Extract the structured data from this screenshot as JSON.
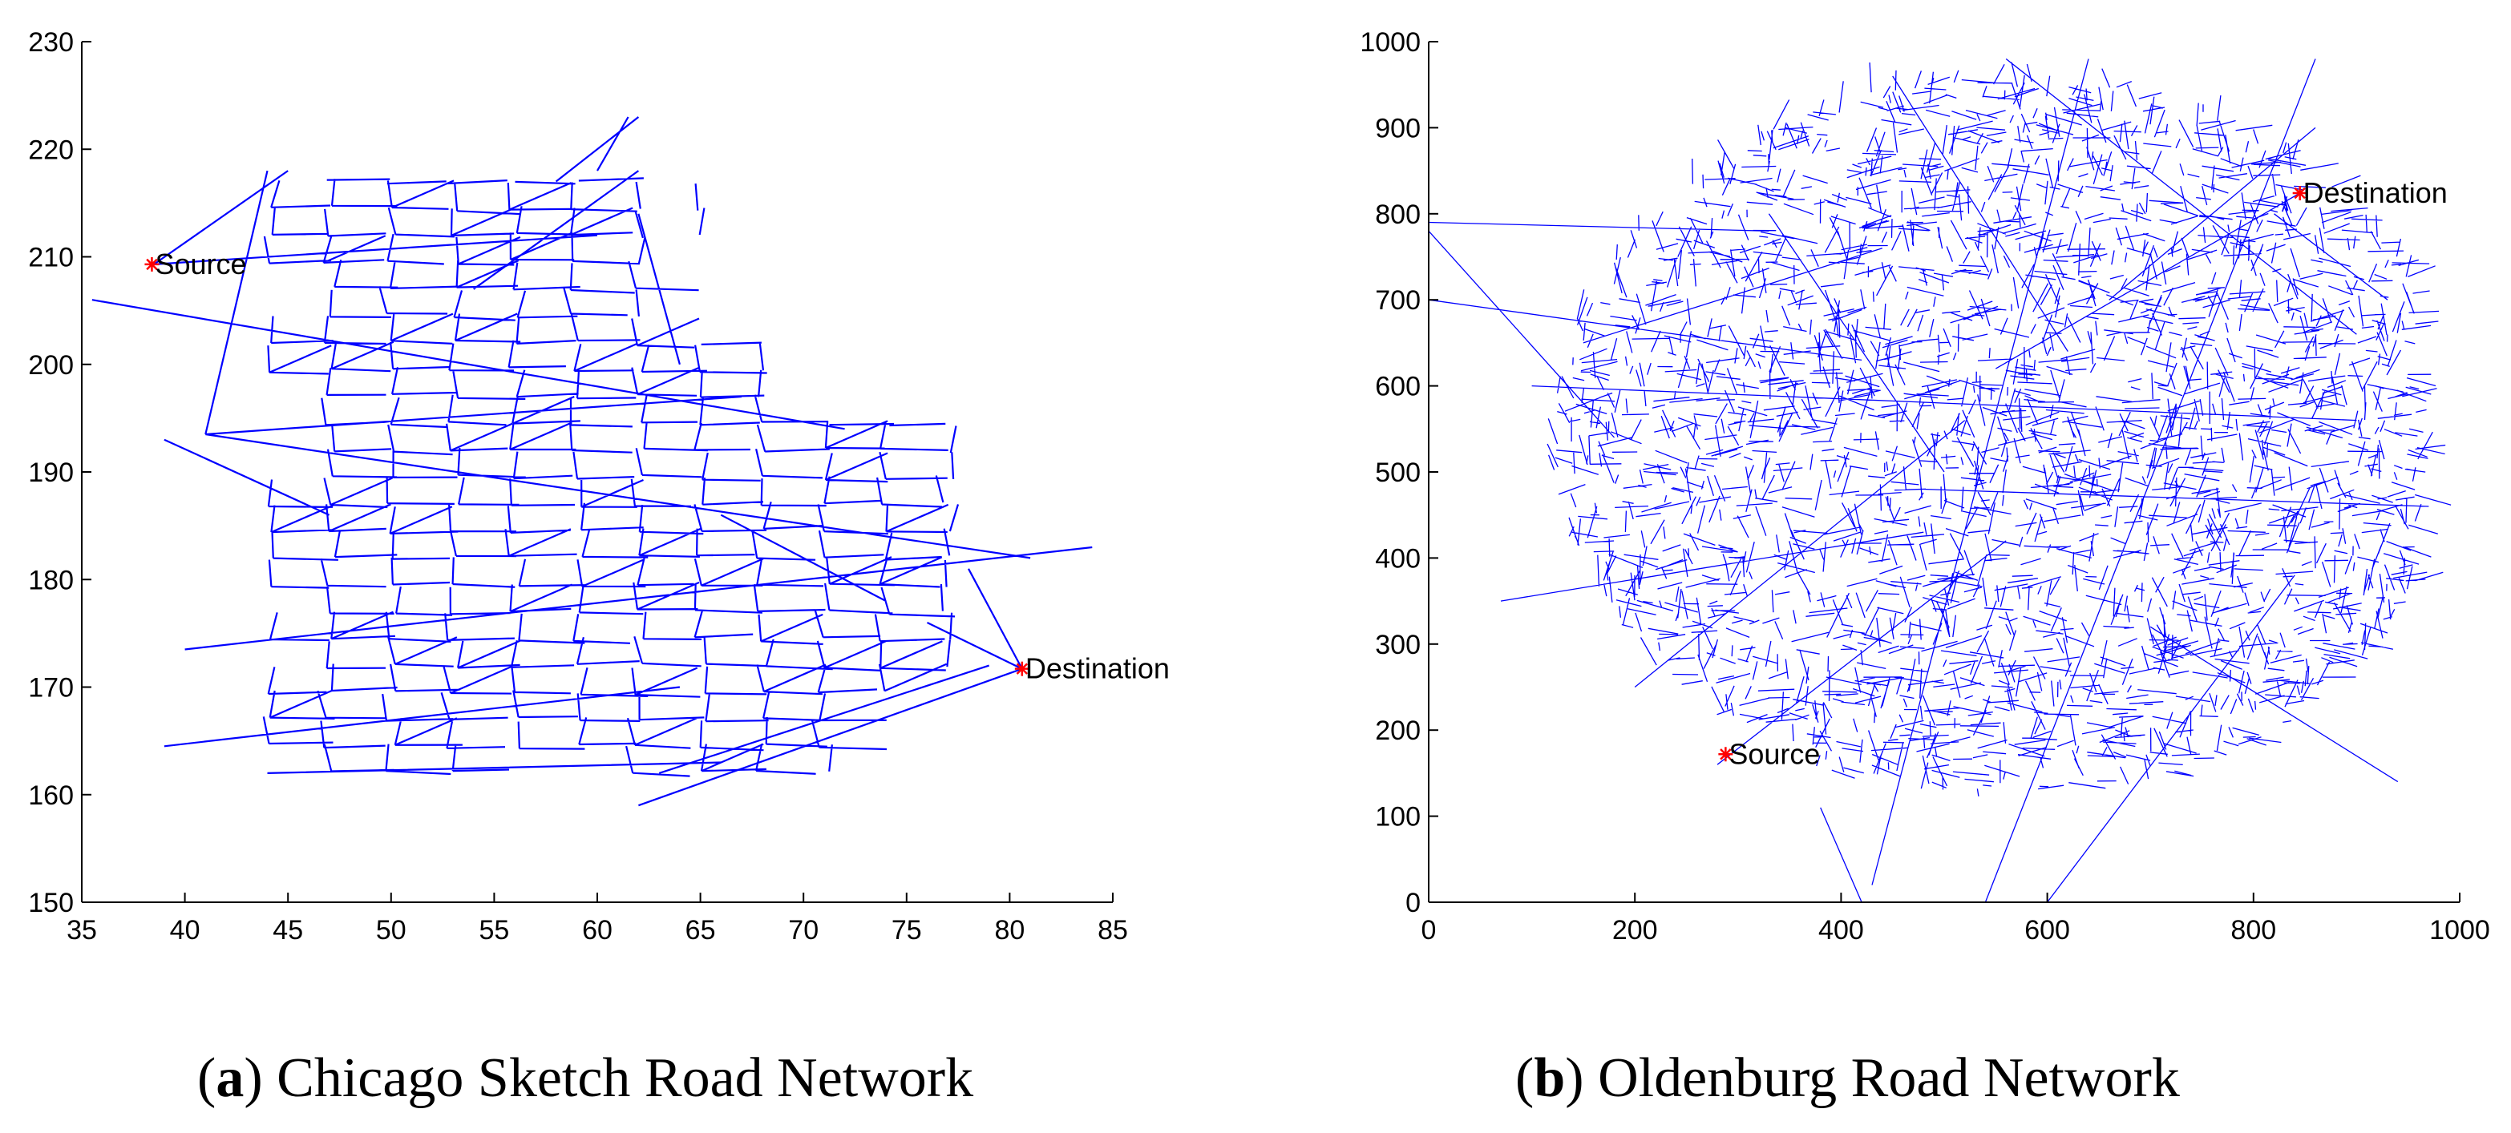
{
  "colors": {
    "road": "#0000ff",
    "marker": "#ff0000",
    "axis": "#000000"
  },
  "chart_data": [
    {
      "type": "scatter",
      "panel": "a",
      "caption_letter": "a",
      "caption_text": "Chicago Sketch Road Network",
      "xlim": [
        35,
        85
      ],
      "ylim": [
        150,
        230
      ],
      "xticks": [
        35,
        40,
        45,
        50,
        55,
        60,
        65,
        70,
        75,
        80,
        85
      ],
      "yticks": [
        150,
        160,
        170,
        180,
        190,
        200,
        210,
        220,
        230
      ],
      "series": [
        {
          "name": "Source",
          "marker": "*",
          "x": [
            38.4
          ],
          "y": [
            209.3
          ]
        },
        {
          "name": "Destination",
          "marker": "*",
          "x": [
            80.6
          ],
          "y": [
            171.7
          ]
        }
      ]
    },
    {
      "type": "scatter",
      "panel": "b",
      "caption_letter": "b",
      "caption_text": "Oldenburg Road Network",
      "xlim": [
        0,
        1000
      ],
      "ylim": [
        0,
        1000
      ],
      "xticks": [
        0,
        200,
        400,
        600,
        800,
        1000
      ],
      "yticks": [
        0,
        100,
        200,
        300,
        400,
        500,
        600,
        700,
        800,
        900,
        1000
      ],
      "series": [
        {
          "name": "Source",
          "marker": "*",
          "x": [
            288
          ],
          "y": [
            172
          ]
        },
        {
          "name": "Destination",
          "marker": "*",
          "x": [
            845
          ],
          "y": [
            824
          ]
        }
      ]
    }
  ]
}
